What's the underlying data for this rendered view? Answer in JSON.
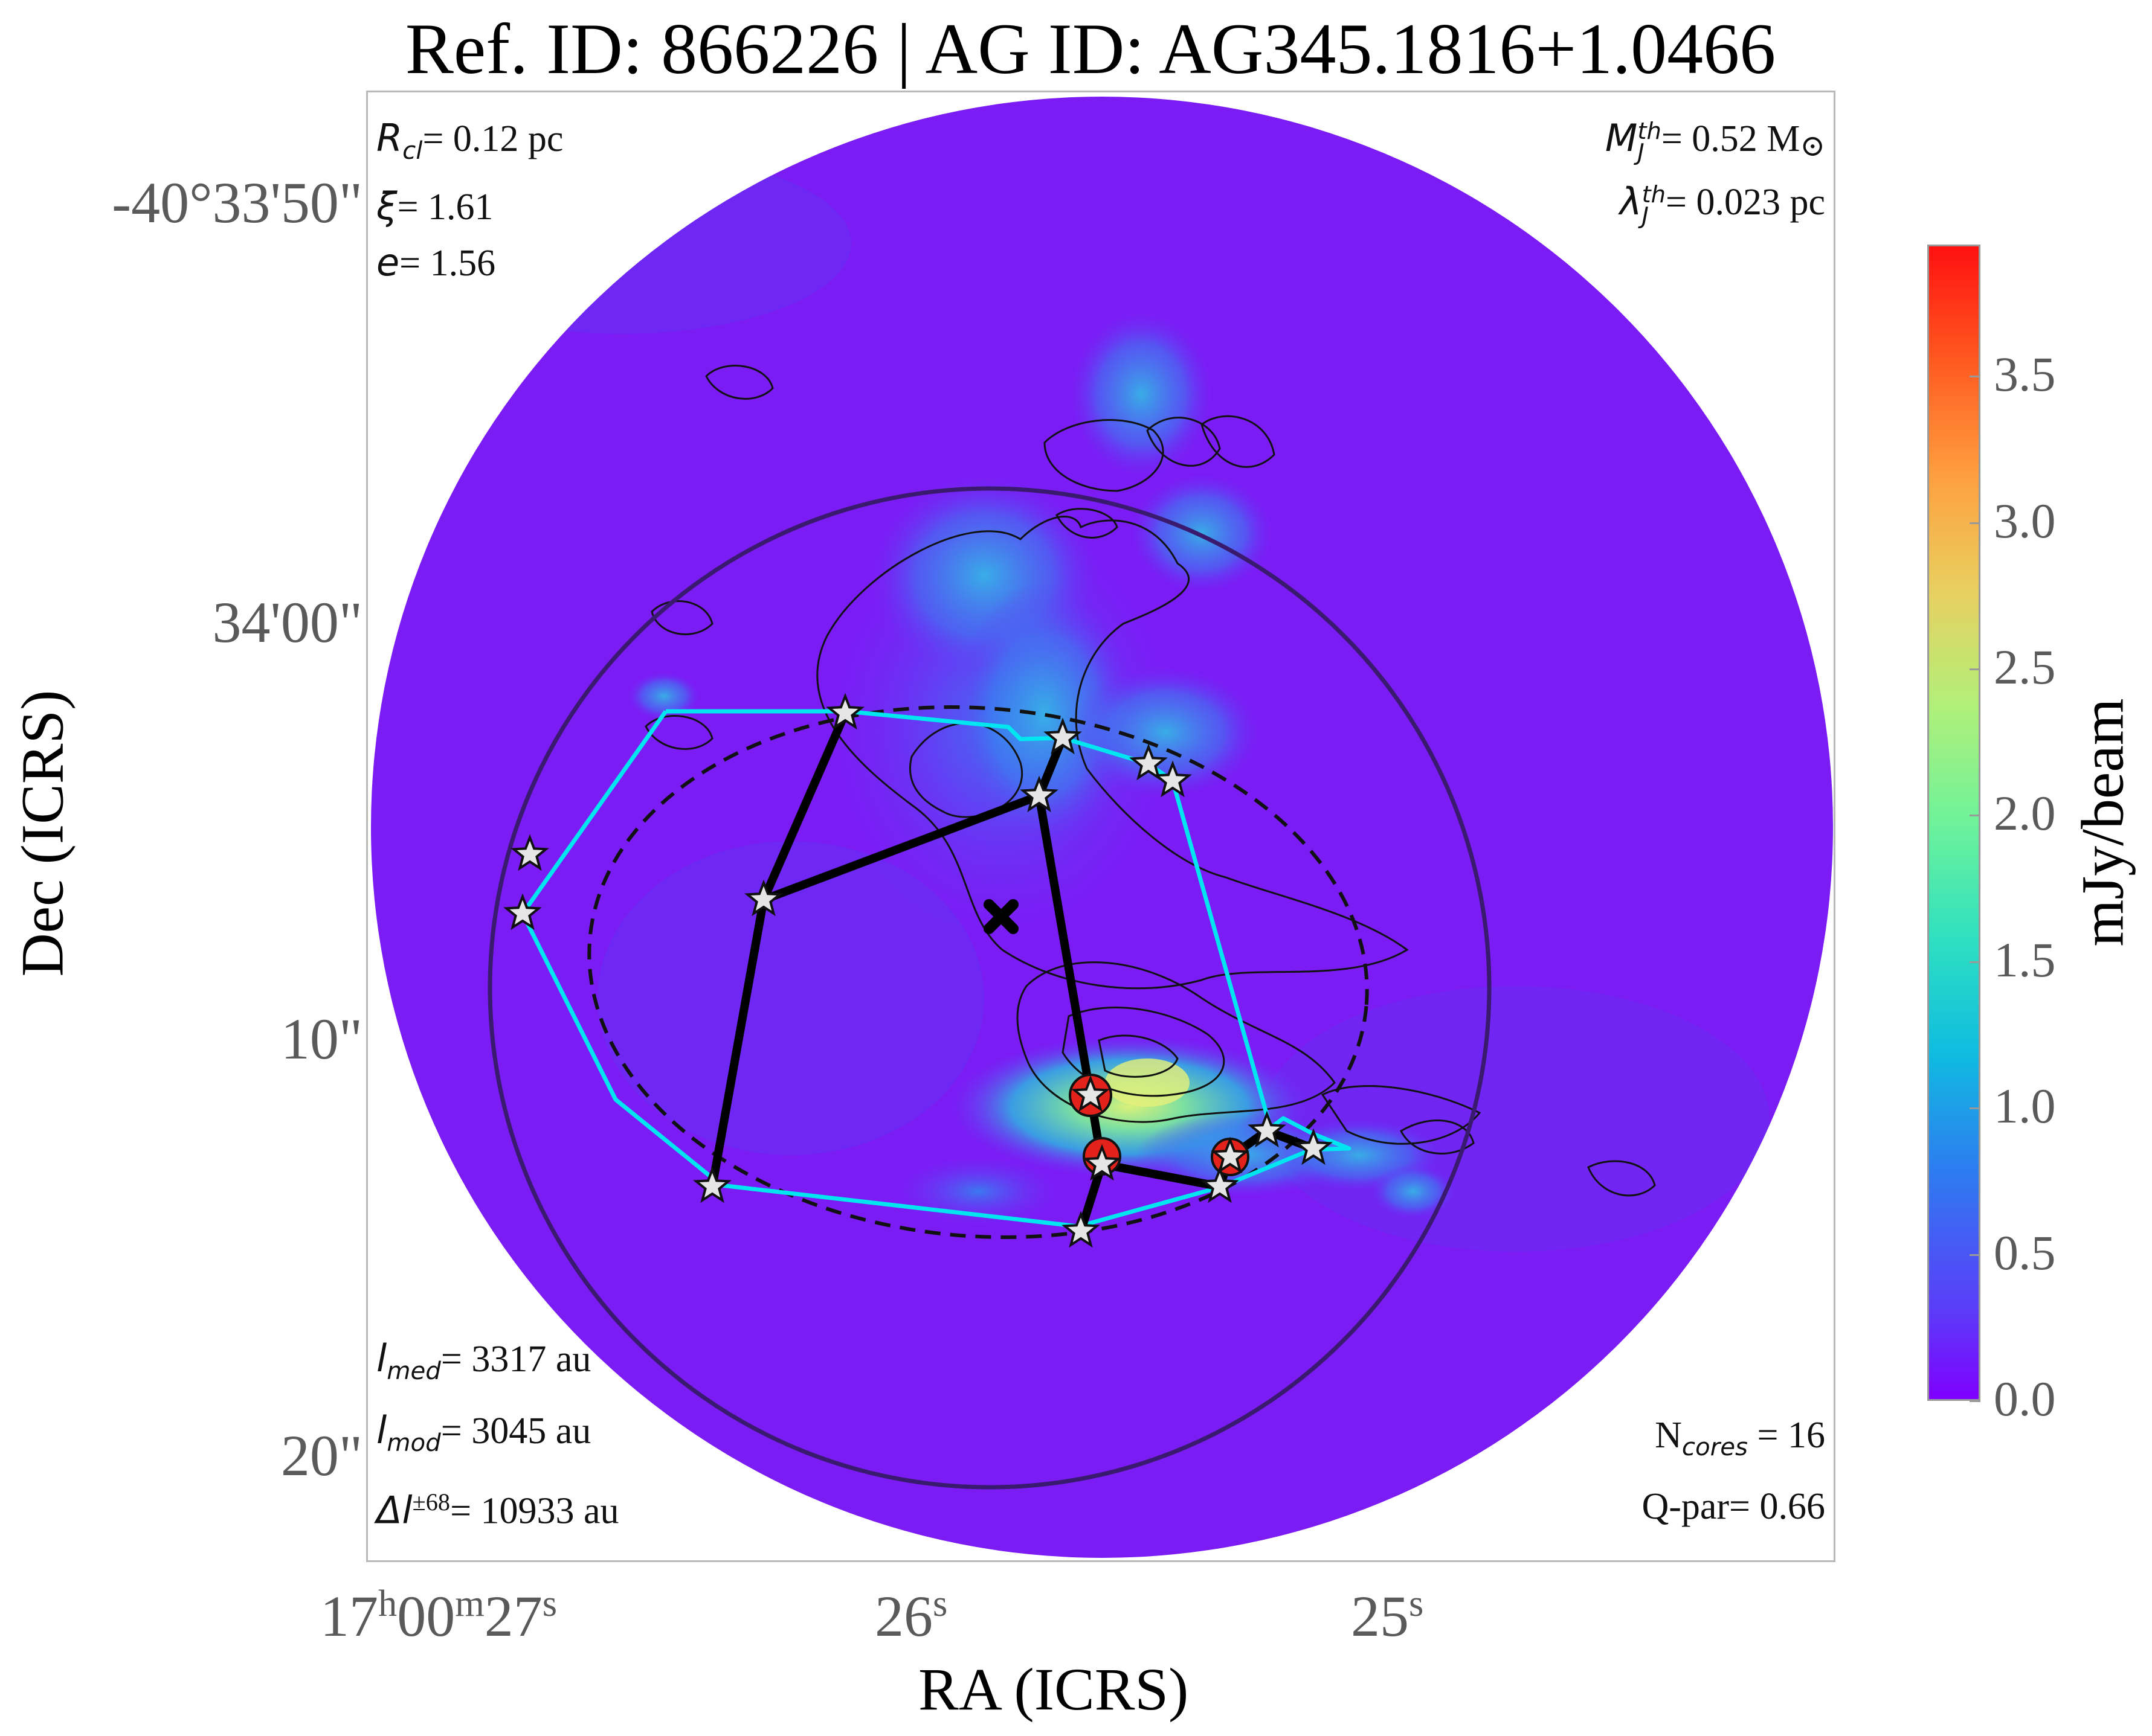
{
  "title": "Ref. ID: 866226 | AG ID: AG345.1816+1.0466",
  "xlabel": "RA (ICRS)",
  "ylabel": "Dec (ICRS)",
  "yticks": [
    "-40°33'50\"",
    "34'00\"",
    "10\"",
    "20\""
  ],
  "xticks": [
    {
      "main": "17",
      "h": "h",
      "m1": "00",
      "m": "m",
      "s1": "27",
      "s": "s"
    },
    {
      "main": "26",
      "s": "s"
    },
    {
      "main": "25",
      "s": "s"
    }
  ],
  "info_top_left": {
    "r_sym": "R",
    "r_sub": "cl",
    "r_val": "= 0.12 pc",
    "xi_sym": "ξ",
    "xi_val": "= 1.61",
    "e_sym": "e",
    "e_val": "= 1.56"
  },
  "info_top_right": {
    "m_sym": "M",
    "m_sup": "th",
    "m_sub": "J",
    "m_val": "= 0.52 M",
    "m_unit_sym": "⊙",
    "l_sym": "λ",
    "l_sup": "th",
    "l_sub": "J",
    "l_val": "= 0.023 pc"
  },
  "info_bottom_left": {
    "med_sym": "l",
    "med_sub": "med",
    "med_val": "= 3317 au",
    "mod_sym": "l",
    "mod_sub": "mod",
    "mod_val": "= 3045 au",
    "d_sym": "Δl",
    "d_sup": "±68",
    "d_val": "= 10933 au"
  },
  "info_bottom_right": {
    "n_sym": "N",
    "n_sub": "cores",
    "n_val": " = 16",
    "q_text": "Q-par= 0.66"
  },
  "colorbar": {
    "label": "mJy/beam",
    "ticks": [
      "0.0",
      "0.5",
      "1.0",
      "1.5",
      "2.0",
      "2.5",
      "3.0",
      "3.5"
    ],
    "tick_values": [
      0.0,
      0.5,
      1.0,
      1.5,
      2.0,
      2.5,
      3.0,
      3.5
    ],
    "vmin": 0.0,
    "vmax": 3.95,
    "colormap": "rainbow"
  },
  "colors": {
    "background_map": "#7b1cf5",
    "hull_line": "#00e6f0",
    "mst_line": "#000000",
    "outer_circle": "#3a1a6e",
    "star_fill": "#e6e6e6",
    "hot_core": "#e3221b"
  }
}
